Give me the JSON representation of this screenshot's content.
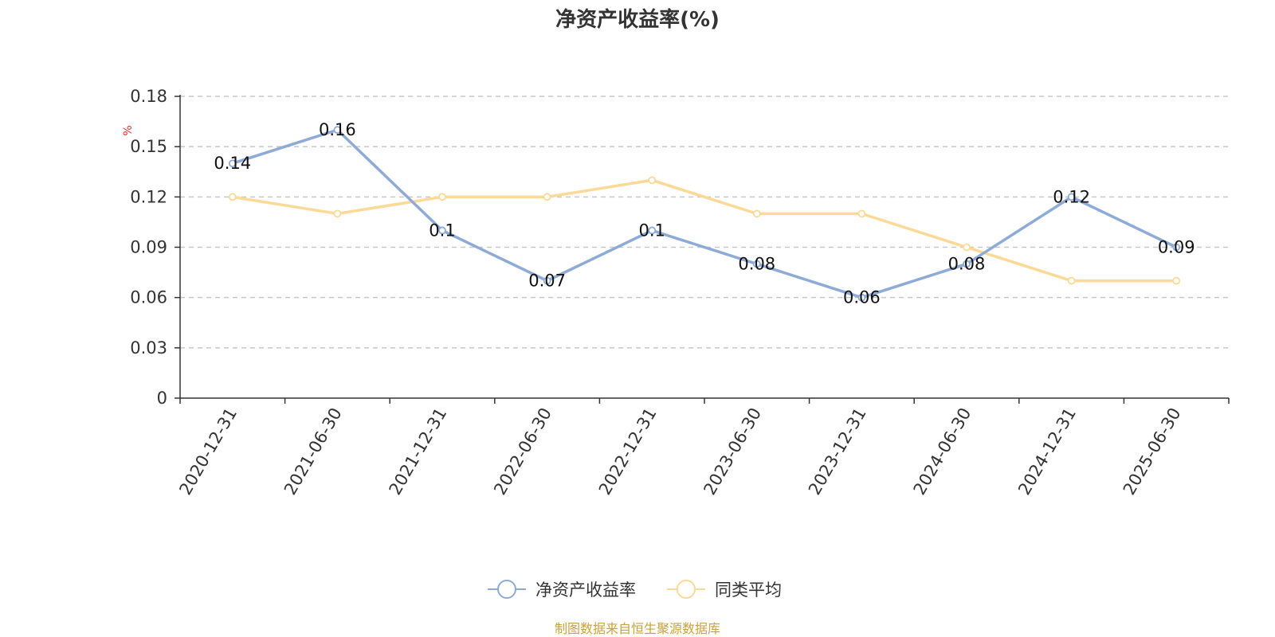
{
  "colors": {
    "roe": "#8eabd8",
    "avg": "#fcd996",
    "unit": "#e03030",
    "source": "#c9a23c",
    "grid": "#c8c8c8",
    "axis": "#333333"
  },
  "footer": {
    "source": "制图数据来自恒生聚源数据库"
  },
  "chart_data": {
    "type": "line",
    "title": "净资产收益率(%)",
    "ylabel": "%",
    "xlabel": "",
    "categories": [
      "2020-12-31",
      "2021-06-30",
      "2021-12-31",
      "2022-06-30",
      "2022-12-31",
      "2023-06-30",
      "2023-12-31",
      "2024-06-30",
      "2024-12-31",
      "2025-06-30"
    ],
    "yticks": [
      "0",
      "0.03",
      "0.06",
      "0.09",
      "0.12",
      "0.15",
      "0.18"
    ],
    "ylim": [
      0,
      0.18
    ],
    "grid": true,
    "legend_position": "bottom-center",
    "series": [
      {
        "name": "净资产收益率",
        "values": [
          0.14,
          0.16,
          0.1,
          0.07,
          0.1,
          0.08,
          0.06,
          0.08,
          0.12,
          0.09
        ],
        "labels": [
          "0.14",
          "0.16",
          "0.1",
          "0.07",
          "0.1",
          "0.08",
          "0.06",
          "0.08",
          "0.12",
          "0.09"
        ]
      },
      {
        "name": "同类平均",
        "values": [
          0.12,
          0.11,
          0.12,
          0.12,
          0.13,
          0.11,
          0.11,
          0.09,
          0.07,
          0.07
        ]
      }
    ]
  }
}
